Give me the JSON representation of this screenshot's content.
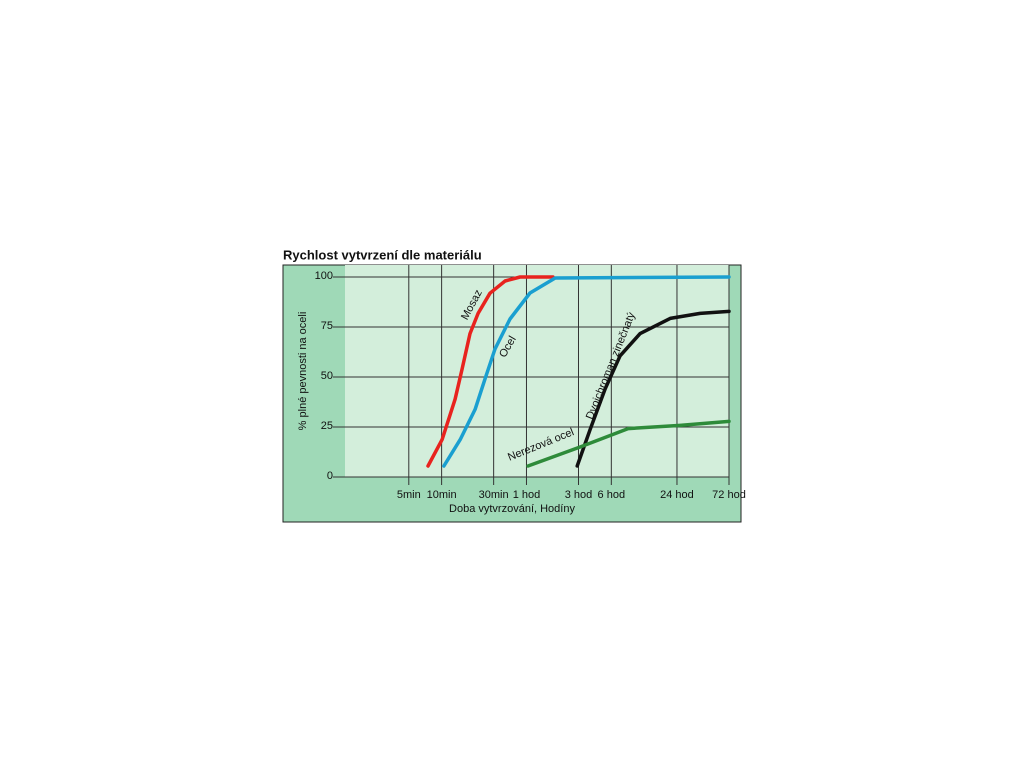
{
  "chart_data": {
    "type": "line",
    "title": "Rychlost vytvrzení dle materiálu",
    "x_label": "Doba vytvrzování, Hodíny",
    "y_label": "% plné pevnosti na oceli",
    "log_x": true,
    "grid": true,
    "xlim": [
      1.3,
      4320
    ],
    "ylim": [
      0,
      106
    ],
    "xticks": [
      {
        "value": 5,
        "label": "5min"
      },
      {
        "value": 10,
        "label": "10min"
      },
      {
        "value": 30,
        "label": "30min"
      },
      {
        "value": 60,
        "label": "1 hod"
      },
      {
        "value": 180,
        "label": "3 hod"
      },
      {
        "value": 360,
        "label": "6 hod"
      },
      {
        "value": 1440,
        "label": "24 hod"
      },
      {
        "value": 4320,
        "label": "72 hod"
      }
    ],
    "yticks": [
      0,
      25,
      50,
      75,
      100
    ],
    "series": [
      {
        "name": "Mosaz",
        "color": "#e8231e",
        "x": [
          7.5,
          10.1,
          13.3,
          15.4,
          18.2,
          21.6,
          27.8,
          38.2,
          52.5,
          105
        ],
        "values": [
          5.5,
          18.7,
          38.9,
          54,
          71.7,
          81.8,
          91.9,
          98,
          100,
          100
        ]
      },
      {
        "name": "Ocel",
        "color": "#1a9fd0",
        "x": [
          10.5,
          14.8,
          20.3,
          25,
          30.9,
          42.4,
          64.7,
          110,
          4320
        ],
        "values": [
          5.5,
          18.7,
          33.8,
          49,
          64,
          79,
          92,
          99.5,
          100
        ]
      },
      {
        "name": "Dvojchroman zinečnatý",
        "color": "#111111",
        "x": [
          175,
          230,
          316,
          433,
          661,
          1247,
          2345,
          4320
        ],
        "values": [
          5.5,
          23.7,
          44,
          60.6,
          71.7,
          79.3,
          81.8,
          82.8
        ]
      },
      {
        "name": "Nerezová ocel",
        "color": "#2e8b3a",
        "x": [
          62,
          186,
          513,
          1538,
          4320
        ],
        "values": [
          5.5,
          15,
          24.2,
          25.8,
          27.8
        ]
      }
    ]
  }
}
